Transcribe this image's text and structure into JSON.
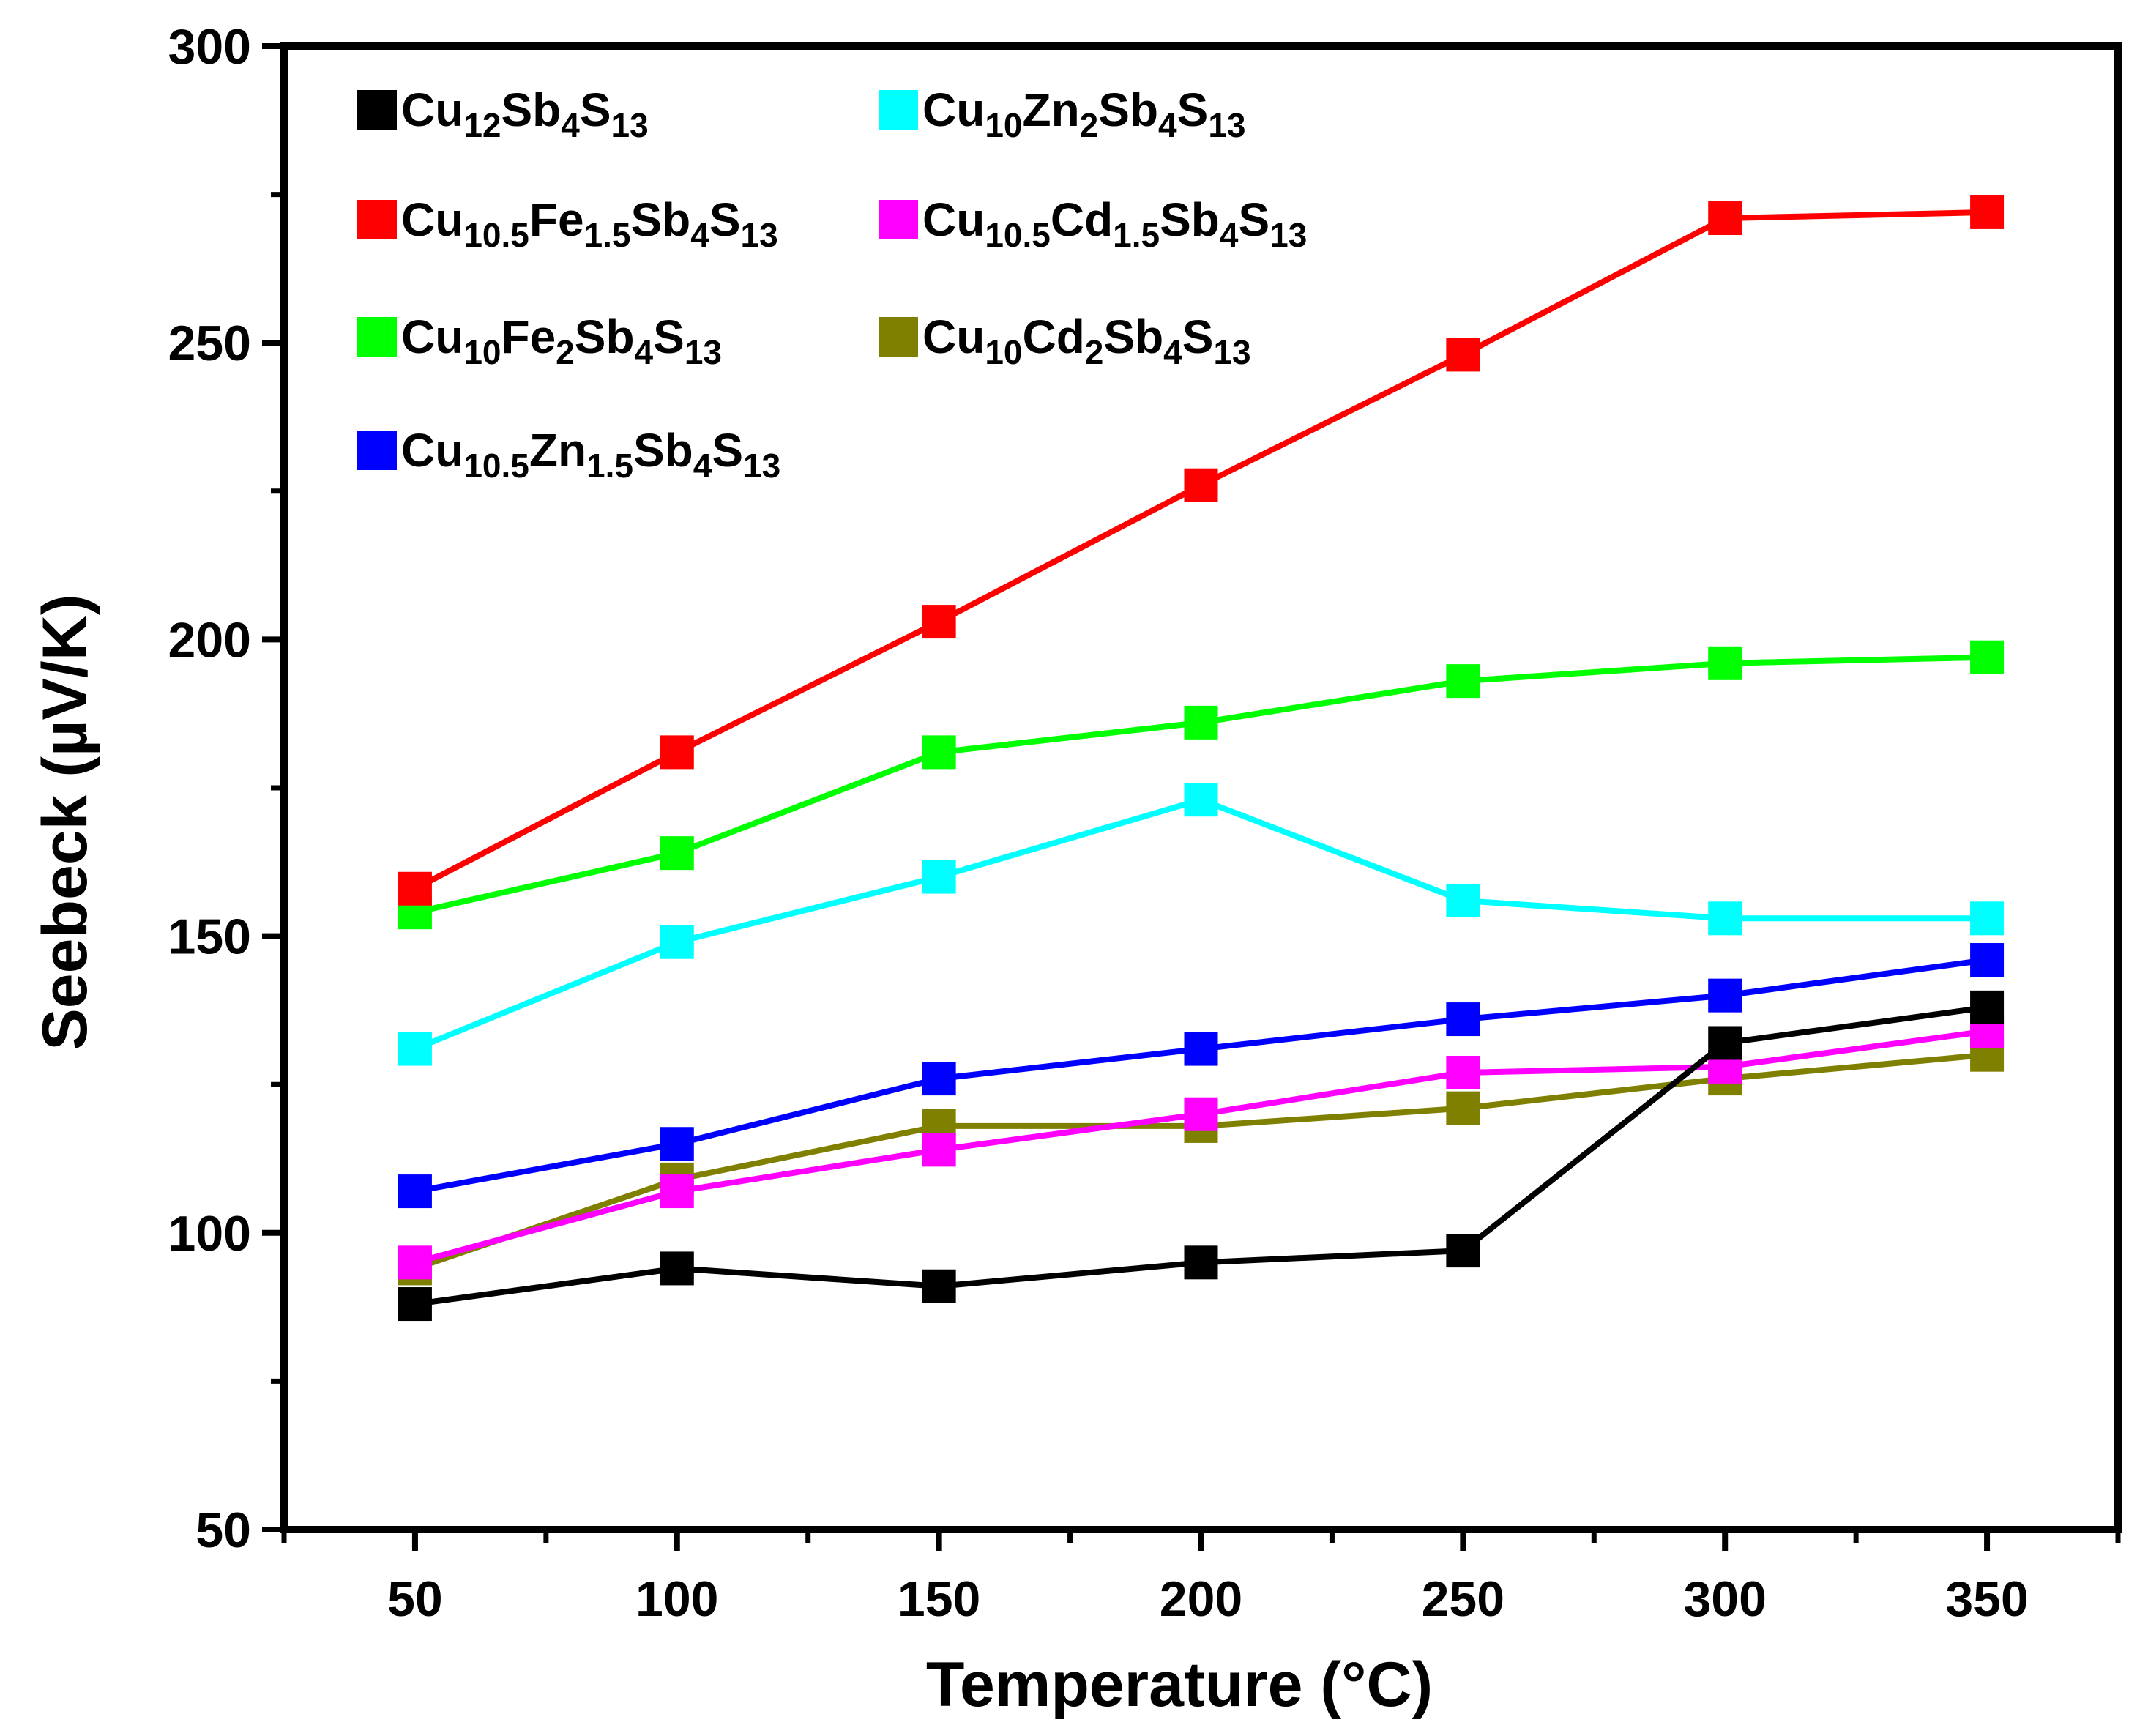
{
  "chart_data": {
    "type": "line",
    "title": "",
    "xlabel": "Temperature (°C)",
    "ylabel": "Seebeck (µV/K)",
    "xlim": [
      25,
      375
    ],
    "ylim": [
      50,
      300
    ],
    "x": [
      50,
      100,
      150,
      200,
      250,
      300,
      350
    ],
    "x_ticks": [
      50,
      100,
      150,
      200,
      250,
      300,
      350
    ],
    "y_ticks": [
      50,
      100,
      150,
      200,
      250,
      300
    ],
    "grid": false,
    "legend_position": "top-left",
    "series": [
      {
        "name": "Cu12Sb4S13",
        "legend": [
          [
            "Cu",
            ""
          ],
          [
            "12",
            "sub"
          ],
          [
            "Sb",
            ""
          ],
          [
            "4",
            "sub"
          ],
          [
            "S",
            ""
          ],
          [
            "13",
            "sub"
          ]
        ],
        "color": "#000000",
        "values": [
          88,
          94,
          91,
          95,
          97,
          132,
          138
        ]
      },
      {
        "name": "Cu10Zn2Sb4S13",
        "legend": [
          [
            "Cu",
            ""
          ],
          [
            "10",
            "sub"
          ],
          [
            "Zn",
            ""
          ],
          [
            "2",
            "sub"
          ],
          [
            "Sb",
            ""
          ],
          [
            "4",
            "sub"
          ],
          [
            "S",
            ""
          ],
          [
            "13",
            "sub"
          ]
        ],
        "color": "#00ffff",
        "values": [
          131,
          149,
          160,
          173,
          156,
          153,
          153
        ]
      },
      {
        "name": "Cu10.5Fe1.5Sb4S13",
        "legend": [
          [
            "Cu",
            ""
          ],
          [
            "10.5",
            "sub"
          ],
          [
            "Fe",
            ""
          ],
          [
            "1.5",
            "sub"
          ],
          [
            "Sb",
            ""
          ],
          [
            "4",
            "sub"
          ],
          [
            "S",
            ""
          ],
          [
            "13",
            "sub"
          ]
        ],
        "color": "#ff0000",
        "values": [
          158,
          181,
          203,
          226,
          248,
          271,
          272
        ]
      },
      {
        "name": "Cu10.5Cd1.5Sb4S13",
        "legend": [
          [
            "Cu",
            ""
          ],
          [
            "10.5",
            "sub"
          ],
          [
            "Cd",
            ""
          ],
          [
            "1.5",
            "sub"
          ],
          [
            "Sb",
            ""
          ],
          [
            "4",
            "sub"
          ],
          [
            "S",
            ""
          ],
          [
            "13",
            "sub"
          ]
        ],
        "color": "#ff00ff",
        "values": [
          95,
          107,
          114,
          120,
          127,
          128,
          134
        ]
      },
      {
        "name": "Cu10Fe2Sb4S13",
        "legend": [
          [
            "Cu",
            ""
          ],
          [
            "10",
            "sub"
          ],
          [
            "Fe",
            ""
          ],
          [
            "2",
            "sub"
          ],
          [
            "Sb",
            ""
          ],
          [
            "4",
            "sub"
          ],
          [
            "S",
            ""
          ],
          [
            "13",
            "sub"
          ]
        ],
        "color": "#00ff00",
        "values": [
          154,
          164,
          181,
          186,
          193,
          196,
          197
        ]
      },
      {
        "name": "Cu10Cd2Sb4S13",
        "legend": [
          [
            "Cu",
            ""
          ],
          [
            "10",
            "sub"
          ],
          [
            "Cd",
            ""
          ],
          [
            "2",
            "sub"
          ],
          [
            "Sb",
            ""
          ],
          [
            "4",
            "sub"
          ],
          [
            "S",
            ""
          ],
          [
            "13",
            "sub"
          ]
        ],
        "color": "#808000",
        "values": [
          94,
          109,
          118,
          118,
          121,
          126,
          130
        ]
      },
      {
        "name": "Cu10.5Zn1.5Sb4S13",
        "legend": [
          [
            "Cu",
            ""
          ],
          [
            "10.5",
            "sub"
          ],
          [
            "Zn",
            ""
          ],
          [
            "1.5",
            "sub"
          ],
          [
            "Sb",
            ""
          ],
          [
            "4",
            "sub"
          ],
          [
            "S",
            ""
          ],
          [
            "13",
            "sub"
          ]
        ],
        "color": "#0000ff",
        "values": [
          107,
          115,
          126,
          131,
          136,
          140,
          146
        ]
      }
    ]
  }
}
